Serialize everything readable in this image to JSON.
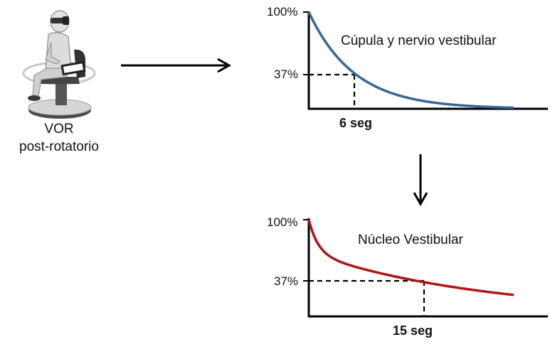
{
  "figure": {
    "caption_line1": "VOR",
    "caption_line2": "post-rotatorio"
  },
  "chart_data": [
    {
      "type": "line",
      "title": "Cúpula y nervio vestibular",
      "ytick_labels": [
        "100%",
        "37%"
      ],
      "yticks": [
        100,
        37
      ],
      "time_constant_label": "6 seg",
      "time_constant": 6,
      "series": [
        {
          "values_at_tau": 37,
          "color": "#3c6496"
        }
      ]
    },
    {
      "type": "line",
      "title": "Núcleo Vestibular",
      "ytick_labels": [
        "100%",
        "37%"
      ],
      "yticks": [
        100,
        37
      ],
      "time_constant_label": "15 seg",
      "time_constant": 15,
      "series": [
        {
          "values_at_tau": 37,
          "color": "#b01515"
        }
      ]
    }
  ],
  "colors": {
    "arrow": "#000000",
    "axis": "#000000",
    "curve_top": "#3c6496",
    "curve_bottom": "#b01515"
  },
  "icons": [
    "person-in-rotary-chair-icon",
    "arrow-right-icon",
    "arrow-down-icon"
  ]
}
